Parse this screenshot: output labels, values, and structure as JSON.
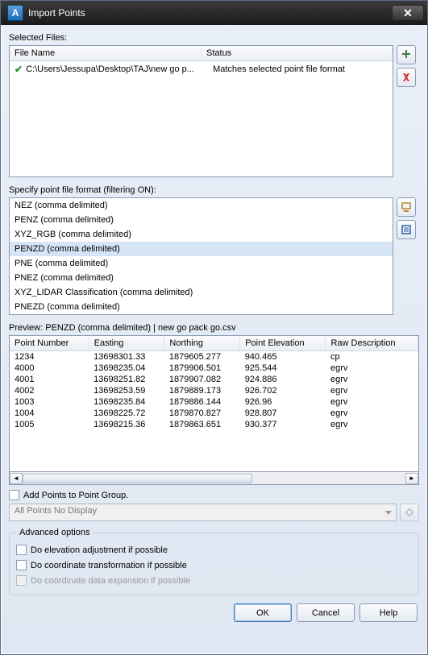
{
  "window_title": "Import Points",
  "labels": {
    "selected_files": "Selected Files:",
    "file_name_col": "File Name",
    "status_col": "Status",
    "selected_file_path": "C:\\Users\\Jessupa\\Desktop\\TAJ\\new go p...",
    "selected_file_status": "Matches selected point file format",
    "specify_format": "Specify point file format (filtering ON):",
    "preview": "Preview: PENZD (comma delimited)  |  new go pack go.csv",
    "add_points": "Add Points to Point Group.",
    "combo_value": "All Points No Display",
    "advanced": "Advanced options",
    "elev_adj": "Do elevation adjustment if possible",
    "coord_trans": "Do coordinate transformation if possible",
    "coord_exp": "Do coordinate data expansion if possible",
    "ok": "OK",
    "cancel": "Cancel",
    "help": "Help"
  },
  "formats": [
    "NEZ (comma delimited)",
    "PENZ (comma delimited)",
    "XYZ_RGB (comma delimited)",
    "PENZD (comma delimited)",
    "PNE (comma delimited)",
    "PNEZ (comma delimited)",
    "XYZ_LIDAR Classification (comma delimited)",
    "PNEZD (comma delimited)"
  ],
  "format_selected_index": 3,
  "preview_table": {
    "columns": [
      "Point Number",
      "Easting",
      "Northing",
      "Point Elevation",
      "Raw Description"
    ],
    "rows": [
      [
        "1234",
        "13698301.33",
        "1879605.277",
        "940.465",
        "cp"
      ],
      [
        "4000",
        "13698235.04",
        "1879906.501",
        "925.544",
        "egrv"
      ],
      [
        "4001",
        "13698251.82",
        "1879907.082",
        "924.886",
        "egrv"
      ],
      [
        "4002",
        "13698253.59",
        "1879889.173",
        "926.702",
        "egrv"
      ],
      [
        "1003",
        "13698235.84",
        "1879886.144",
        "926.96",
        "egrv"
      ],
      [
        "1004",
        "13698225.72",
        "1879870.827",
        "928.807",
        "egrv"
      ],
      [
        "1005",
        "13698215.36",
        "1879863.651",
        "930.377",
        "egrv"
      ]
    ]
  },
  "colors": {
    "title_bg": "#1a1a1a",
    "accent": "#4a7ab8",
    "delete": "#cc2e2e",
    "add": "#3a7a3a"
  }
}
